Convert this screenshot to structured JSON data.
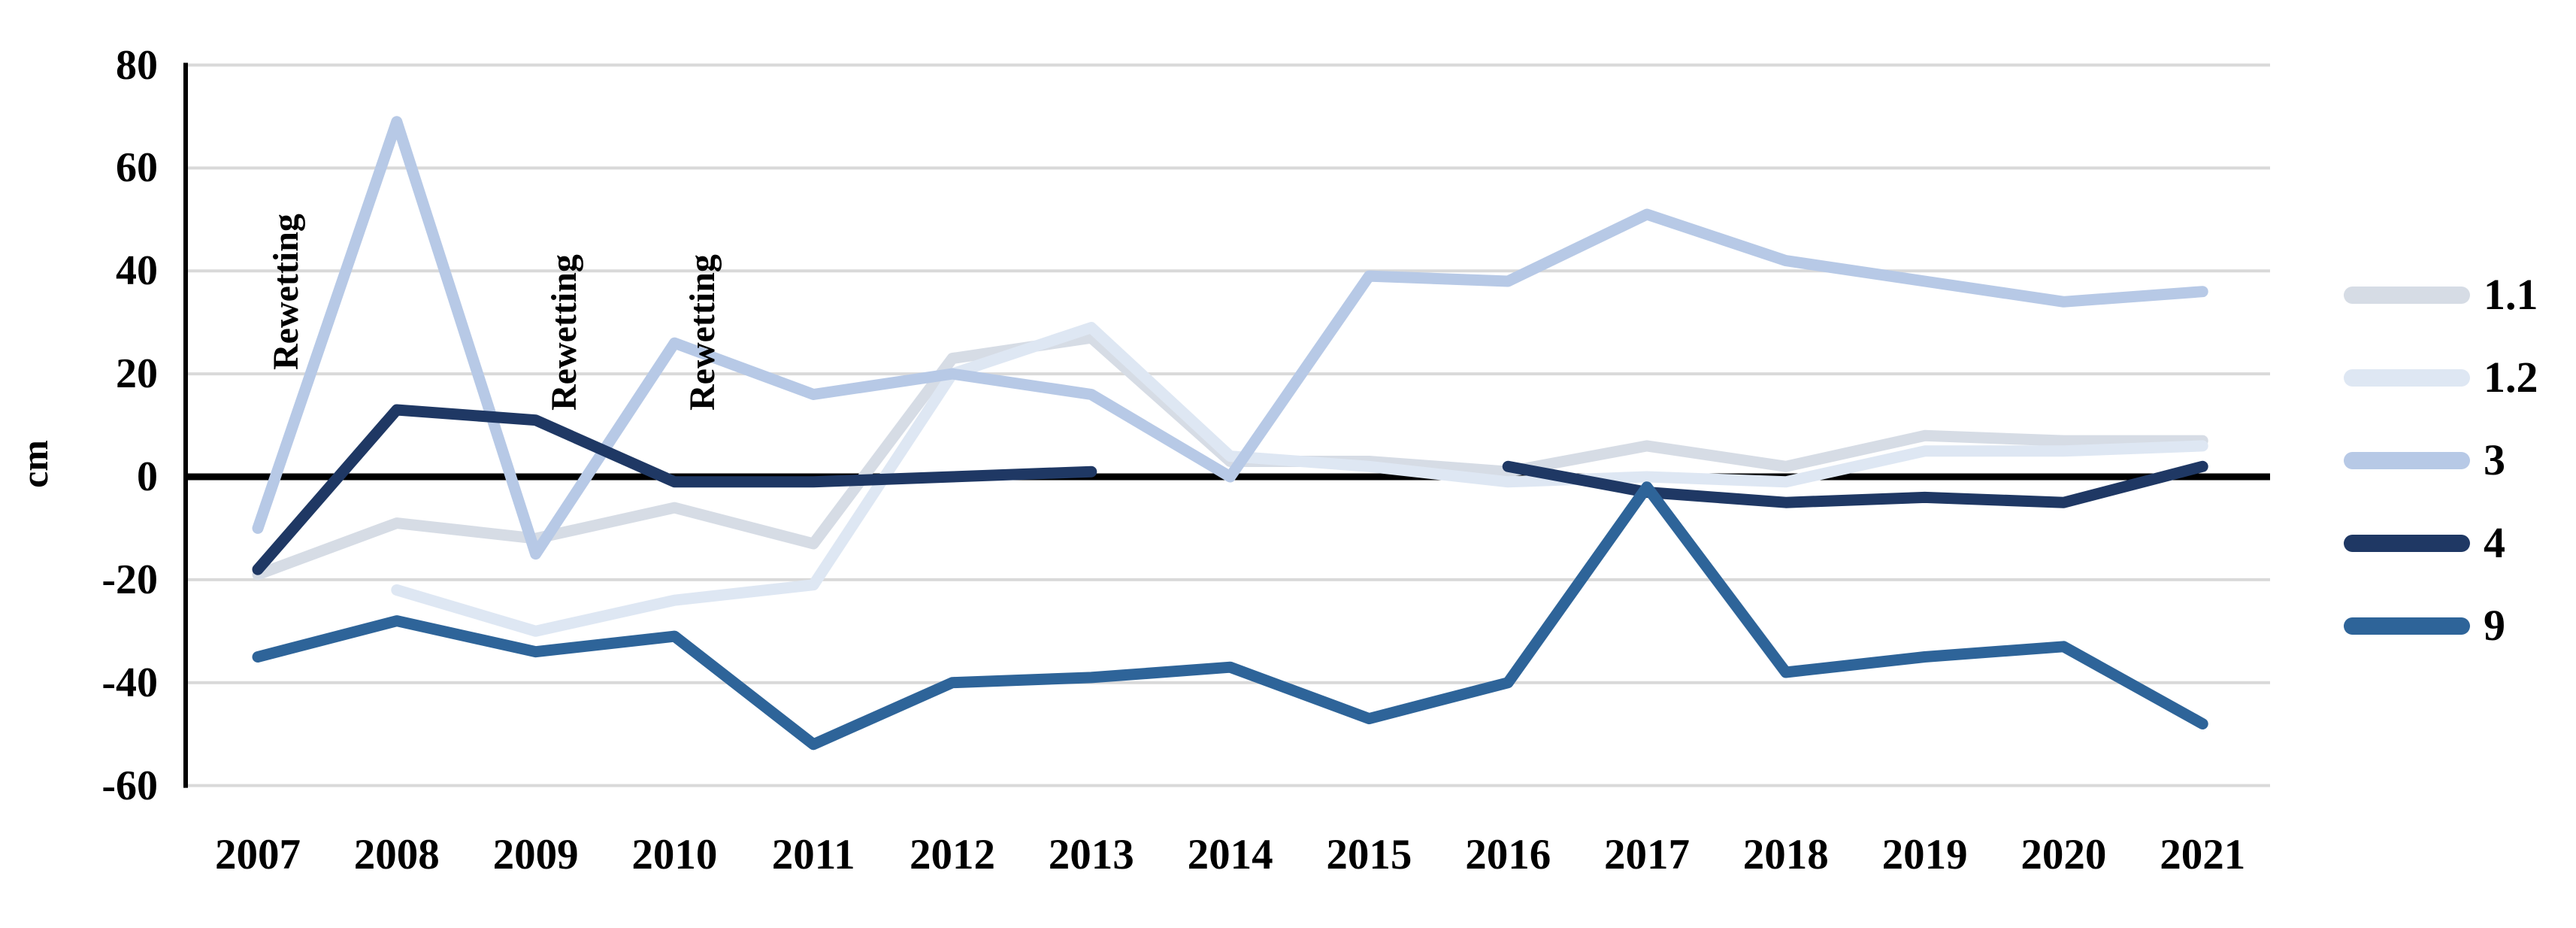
{
  "chart_data": {
    "type": "line",
    "title": "",
    "ylabel": "cm",
    "xlabel": "",
    "grid": true,
    "legend_position": "right",
    "y_axis": {
      "min": -60,
      "max": 80,
      "step": 20,
      "ticks": [
        80,
        60,
        40,
        20,
        0,
        -20,
        -40,
        -60
      ]
    },
    "x": [
      2007,
      2008,
      2009,
      2010,
      2011,
      2012,
      2013,
      2014,
      2015,
      2016,
      2017,
      2018,
      2019,
      2020,
      2021
    ],
    "series": [
      {
        "name": "1.1",
        "color": "#D6DCE5",
        "values": [
          -19,
          -9,
          -12,
          -6,
          -13,
          23,
          27,
          3,
          3,
          1,
          6,
          2,
          8,
          7,
          7
        ]
      },
      {
        "name": "1.2",
        "color": "#DEE7F3",
        "values": [
          null,
          -22,
          -30,
          -24,
          -21,
          20,
          29,
          4,
          2,
          -1,
          0,
          -1,
          5,
          5,
          6
        ]
      },
      {
        "name": "3",
        "color": "#B7C9E6",
        "values": [
          -10,
          69,
          -15,
          26,
          16,
          20,
          16,
          0,
          39,
          38,
          51,
          42,
          38,
          34,
          36
        ]
      },
      {
        "name": "4",
        "color": "#1F3864",
        "values": [
          -18,
          13,
          11,
          -1,
          -1,
          0,
          1,
          null,
          null,
          2,
          -3,
          -5,
          -4,
          -5,
          2
        ]
      },
      {
        "name": "9",
        "color": "#2E6499",
        "values": [
          -35,
          -28,
          -34,
          -31,
          -52,
          -40,
          -39,
          -37,
          -47,
          -40,
          -2,
          -38,
          -35,
          -33,
          -48
        ]
      }
    ],
    "annotations": [
      {
        "text": "Rewetting",
        "year": 2007
      },
      {
        "text": "Rewetting",
        "year": 2009
      },
      {
        "text": "Rewetting",
        "year": 2010
      }
    ],
    "colors": {
      "gridline": "#D9D9D9",
      "axis": "#000000",
      "zero_line": "#000000"
    }
  }
}
